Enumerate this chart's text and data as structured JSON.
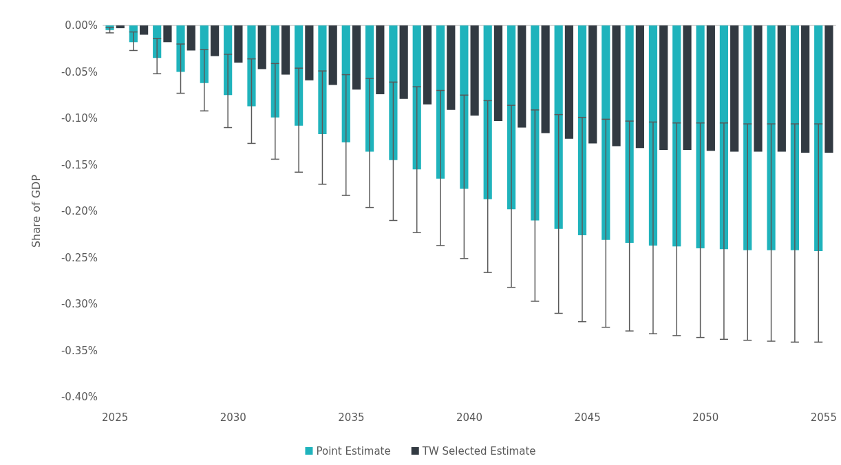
{
  "chart_data": {
    "type": "bar",
    "ylabel": "Share of GDP",
    "categories": [
      "2025",
      null,
      null,
      null,
      null,
      "2030",
      null,
      null,
      null,
      null,
      "2035",
      null,
      null,
      null,
      null,
      "2040",
      null,
      null,
      null,
      null,
      "2045",
      null,
      null,
      null,
      null,
      "2050",
      null,
      null,
      null,
      null,
      "2055"
    ],
    "series": [
      {
        "name": "Point Estimate",
        "color": "#1fb3bc",
        "values": [
          -0.005,
          -0.018,
          -0.035,
          -0.05,
          -0.062,
          -0.075,
          -0.087,
          -0.099,
          -0.108,
          -0.117,
          -0.126,
          -0.136,
          -0.145,
          -0.155,
          -0.165,
          -0.176,
          -0.187,
          -0.198,
          -0.21,
          -0.219,
          -0.226,
          -0.231,
          -0.234,
          -0.237,
          -0.238,
          -0.24,
          -0.241,
          -0.242,
          -0.242,
          -0.242,
          -0.243
        ],
        "errors": [
          [
            -0.008,
            -0.002
          ],
          [
            -0.027,
            -0.007
          ],
          [
            -0.052,
            -0.014
          ],
          [
            -0.073,
            -0.02
          ],
          [
            -0.092,
            -0.026
          ],
          [
            -0.11,
            -0.031
          ],
          [
            -0.127,
            -0.036
          ],
          [
            -0.144,
            -0.041
          ],
          [
            -0.158,
            -0.046
          ],
          [
            -0.171,
            -0.049
          ],
          [
            -0.183,
            -0.053
          ],
          [
            -0.196,
            -0.057
          ],
          [
            -0.21,
            -0.061
          ],
          [
            -0.223,
            -0.066
          ],
          [
            -0.237,
            -0.07
          ],
          [
            -0.251,
            -0.075
          ],
          [
            -0.266,
            -0.081
          ],
          [
            -0.282,
            -0.086
          ],
          [
            -0.297,
            -0.091
          ],
          [
            -0.31,
            -0.096
          ],
          [
            -0.319,
            -0.099
          ],
          [
            -0.325,
            -0.101
          ],
          [
            -0.329,
            -0.103
          ],
          [
            -0.332,
            -0.104
          ],
          [
            -0.334,
            -0.105
          ],
          [
            -0.336,
            -0.105
          ],
          [
            -0.338,
            -0.105
          ],
          [
            -0.339,
            -0.106
          ],
          [
            -0.34,
            -0.106
          ],
          [
            -0.341,
            -0.106
          ],
          [
            -0.341,
            -0.106
          ]
        ]
      },
      {
        "name": "TW Selected Estimate",
        "color": "#323a42",
        "values": [
          -0.003,
          -0.01,
          -0.018,
          -0.027,
          -0.033,
          -0.04,
          -0.047,
          -0.053,
          -0.059,
          -0.064,
          -0.069,
          -0.074,
          -0.079,
          -0.085,
          -0.091,
          -0.097,
          -0.103,
          -0.11,
          -0.116,
          -0.122,
          -0.127,
          -0.13,
          -0.132,
          -0.134,
          -0.134,
          -0.135,
          -0.136,
          -0.136,
          -0.136,
          -0.137,
          -0.137
        ]
      }
    ],
    "ylim": [
      -0.4,
      0
    ],
    "yticks": [
      {
        "value": 0,
        "label": "0.00%"
      },
      {
        "value": -0.05,
        "label": "-0.05%"
      },
      {
        "value": -0.1,
        "label": "-0.10%"
      },
      {
        "value": -0.15,
        "label": "-0.15%"
      },
      {
        "value": -0.2,
        "label": "-0.20%"
      },
      {
        "value": -0.25,
        "label": "-0.25%"
      },
      {
        "value": -0.3,
        "label": "-0.30%"
      },
      {
        "value": -0.35,
        "label": "-0.35%"
      },
      {
        "value": -0.4,
        "label": "-0.40%"
      }
    ],
    "grid": false,
    "legend": "bottom"
  }
}
